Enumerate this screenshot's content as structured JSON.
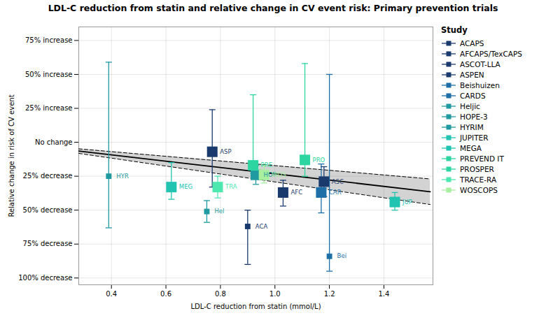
{
  "chart_data": {
    "type": "scatter",
    "title": "LDL-C reduction from statin and relative change in CV event risk: Primary prevention trials",
    "x_label": "LDL-C reduction from statin (mmol/L)",
    "y_label": "Relative change in risk of CV event",
    "marker": "square",
    "series": [
      {
        "name": "ACAPS",
        "color": "#1a3a6e",
        "x": [
          0.9
        ],
        "values": [
          0.62
        ],
        "ylo": [
          0.5
        ],
        "yhi": [
          0.9
        ],
        "sizes": [
          55
        ],
        "labels": [
          "ACA"
        ]
      },
      {
        "name": "AFCAPS/TexCAPS",
        "color": "#1a3a6e",
        "x": [
          1.03
        ],
        "values": [
          0.37
        ],
        "ylo": [
          0.28
        ],
        "yhi": [
          0.47
        ],
        "sizes": [
          200
        ],
        "labels": [
          "AFC"
        ]
      },
      {
        "name": "ASCOT-LLA",
        "color": "#1a3a6e",
        "x": [
          1.18
        ],
        "values": [
          0.29
        ],
        "ylo": [
          0.18
        ],
        "yhi": [
          0.4
        ],
        "sizes": [
          200
        ],
        "labels": [
          "ASC"
        ]
      },
      {
        "name": "ASPEN",
        "color": "#1a3a6e",
        "x": [
          0.77
        ],
        "values": [
          0.07
        ],
        "ylo": [
          -0.24
        ],
        "yhi": [
          0.33
        ],
        "sizes": [
          200
        ],
        "labels": [
          "ASP"
        ]
      },
      {
        "name": "Beishuizen",
        "color": "#1e6fa8",
        "x": [
          1.2
        ],
        "values": [
          0.84
        ],
        "ylo": [
          -0.5
        ],
        "yhi": [
          0.95
        ],
        "sizes": [
          55
        ],
        "labels": [
          "Bei"
        ]
      },
      {
        "name": "CARDS",
        "color": "#1e6fa8",
        "x": [
          1.17
        ],
        "values": [
          0.37
        ],
        "ylo": [
          0.16
        ],
        "yhi": [
          0.52
        ],
        "sizes": [
          200
        ],
        "labels": [
          "CAR"
        ]
      },
      {
        "name": "Heljic",
        "color": "#1e9aa0",
        "x": [
          0.75
        ],
        "values": [
          0.51
        ],
        "ylo": [
          0.43
        ],
        "yhi": [
          0.59
        ],
        "sizes": [
          55
        ],
        "labels": [
          "Hel"
        ]
      },
      {
        "name": "HOPE-3",
        "color": "#1e9aa0",
        "x": [
          0.93
        ],
        "values": [
          0.24
        ],
        "ylo": [
          0.17
        ],
        "yhi": [
          0.31
        ],
        "sizes": [
          200
        ],
        "labels": [
          "HOP"
        ]
      },
      {
        "name": "HYRIM",
        "color": "#1e9aa0",
        "x": [
          0.39
        ],
        "values": [
          0.25
        ],
        "ylo": [
          -0.59
        ],
        "yhi": [
          0.63
        ],
        "sizes": [
          55
        ],
        "labels": [
          "HYR"
        ]
      },
      {
        "name": "JUPITER",
        "color": "#20c4b0",
        "x": [
          1.44
        ],
        "values": [
          0.44
        ],
        "ylo": [
          0.37
        ],
        "yhi": [
          0.5
        ],
        "sizes": [
          200
        ],
        "labels": [
          "JUP"
        ]
      },
      {
        "name": "MEGA",
        "color": "#20c4b0",
        "x": [
          0.62
        ],
        "values": [
          0.33
        ],
        "ylo": [
          0.15
        ],
        "yhi": [
          0.42
        ],
        "sizes": [
          200
        ],
        "labels": [
          "MEG"
        ]
      },
      {
        "name": "PREVEND IT",
        "color": "#2dd6a0",
        "x": [
          0.92
        ],
        "values": [
          0.17
        ],
        "ylo": [
          -0.35
        ],
        "yhi": [
          0.23
        ],
        "sizes": [
          200
        ],
        "labels": [
          "PRE"
        ]
      },
      {
        "name": "PROSPER",
        "color": "#2dd6a0",
        "x": [
          1.11
        ],
        "values": [
          0.13
        ],
        "ylo": [
          -0.58
        ],
        "yhi": [
          0.25
        ],
        "sizes": [
          200
        ],
        "labels": [
          "PRO"
        ]
      },
      {
        "name": "TRACE-RA",
        "color": "#4de8b0",
        "x": [
          0.79
        ],
        "values": [
          0.33
        ],
        "ylo": [
          0.25
        ],
        "yhi": [
          0.41
        ],
        "sizes": [
          200
        ],
        "labels": [
          "TRA"
        ]
      },
      {
        "name": "WOSCOPS",
        "color": "#a8f0a0",
        "x": [
          0.96
        ],
        "values": [
          0.24
        ],
        "ylo": [
          0.17
        ],
        "yhi": [
          0.3
        ],
        "sizes": [
          200
        ],
        "labels": [
          "WOS"
        ]
      }
    ],
    "regression": {
      "x": [
        0.28,
        1.57
      ],
      "values": [
        0.06496,
        0.36424
      ],
      "color": "#000000",
      "line_style": "solid"
    },
    "ci_band": {
      "x": [
        0.28,
        1.57
      ],
      "lower": [
        0.04816,
        0.27004
      ],
      "upper": [
        0.08176,
        0.45844
      ],
      "color": "#808080",
      "line_style": "dashed"
    },
    "xlim": [
      0.28,
      1.58
    ],
    "xticks": [
      0.4,
      0.6,
      0.8,
      {
        "value": 1.0,
        "label": "1.0"
      },
      1.2,
      1.4
    ],
    "ylim": [
      1.05,
      -0.85
    ],
    "yticks": [
      {
        "value": 1.0,
        "label": "100% decrease"
      },
      {
        "value": 0.75,
        "label": "75% decrease"
      },
      {
        "value": 0.5,
        "label": "50% decrease"
      },
      {
        "value": 0.25,
        "label": "25% decrease"
      },
      {
        "value": 0.0,
        "label": "No change"
      },
      {
        "value": -0.25,
        "label": "25% increase"
      },
      {
        "value": -0.5,
        "label": "50% increase"
      },
      {
        "value": -0.75,
        "label": "75% increase"
      }
    ],
    "grid": true,
    "legend": "right",
    "legend_title": "Study"
  }
}
